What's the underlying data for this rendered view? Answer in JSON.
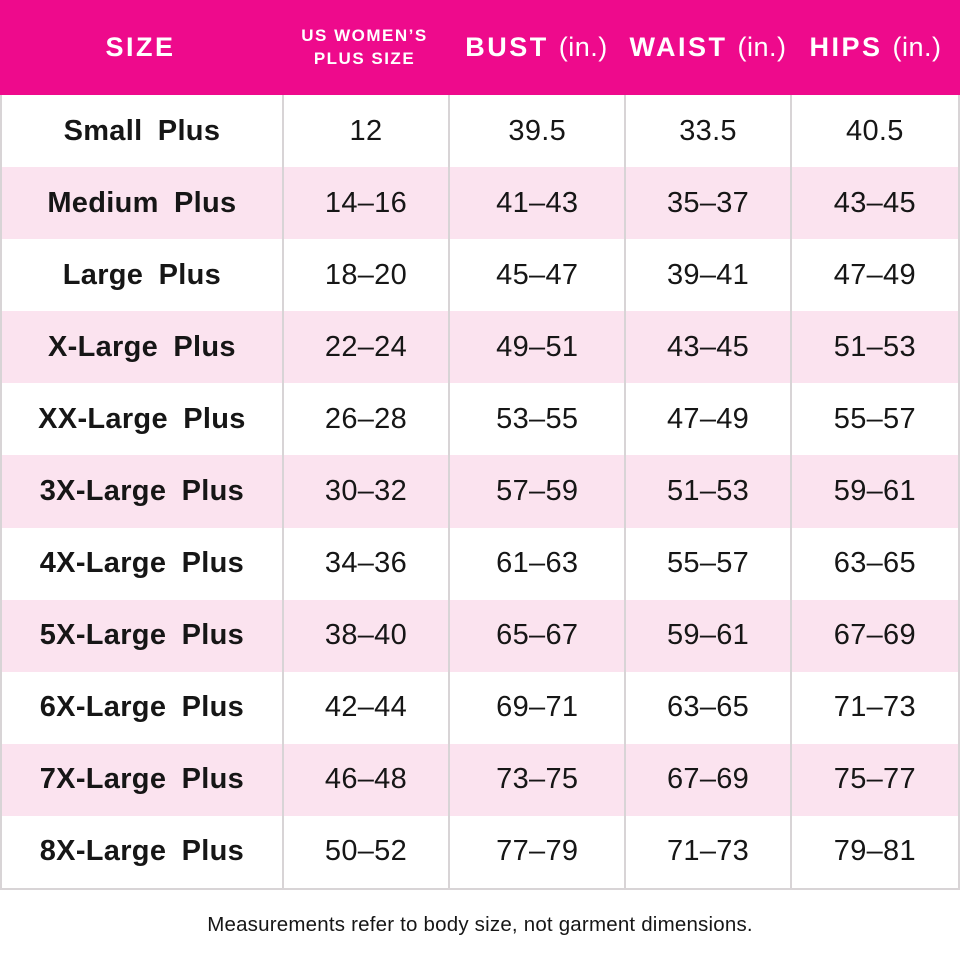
{
  "chart_data": {
    "type": "table",
    "columns": [
      "SIZE",
      "US WOMEN’S PLUS SIZE",
      "BUST (in.)",
      "WAIST (in.)",
      "HIPS (in.)"
    ],
    "rows": [
      {
        "size": "Small Plus",
        "us_plus_size": "12",
        "bust": "39.5",
        "waist": "33.5",
        "hips": "40.5"
      },
      {
        "size": "Medium Plus",
        "us_plus_size": "14–16",
        "bust": "41–43",
        "waist": "35–37",
        "hips": "43–45"
      },
      {
        "size": "Large Plus",
        "us_plus_size": "18–20",
        "bust": "45–47",
        "waist": "39–41",
        "hips": "47–49"
      },
      {
        "size": "X-Large Plus",
        "us_plus_size": "22–24",
        "bust": "49–51",
        "waist": "43–45",
        "hips": "51–53"
      },
      {
        "size": "XX-Large Plus",
        "us_plus_size": "26–28",
        "bust": "53–55",
        "waist": "47–49",
        "hips": "55–57"
      },
      {
        "size": "3X-Large Plus",
        "us_plus_size": "30–32",
        "bust": "57–59",
        "waist": "51–53",
        "hips": "59–61"
      },
      {
        "size": "4X-Large Plus",
        "us_plus_size": "34–36",
        "bust": "61–63",
        "waist": "55–57",
        "hips": "63–65"
      },
      {
        "size": "5X-Large Plus",
        "us_plus_size": "38–40",
        "bust": "65–67",
        "waist": "59–61",
        "hips": "67–69"
      },
      {
        "size": "6X-Large Plus",
        "us_plus_size": "42–44",
        "bust": "69–71",
        "waist": "63–65",
        "hips": "71–73"
      },
      {
        "size": "7X-Large Plus",
        "us_plus_size": "46–48",
        "bust": "73–75",
        "waist": "67–69",
        "hips": "75–77"
      },
      {
        "size": "8X-Large Plus",
        "us_plus_size": "50–52",
        "bust": "77–79",
        "waist": "71–73",
        "hips": "79–81"
      }
    ],
    "footnote": "Measurements refer to body size, not garment dimensions."
  },
  "header": {
    "size_label": "SIZE",
    "plus_size_line1": "US WOMEN’S",
    "plus_size_line2": "PLUS SIZE",
    "bust_label": "BUST",
    "waist_label": "WAIST",
    "hips_label": "HIPS",
    "unit_label": "(in.)"
  },
  "colors": {
    "header_bg": "#ee0a8c",
    "header_text": "#ffffff",
    "row_alt_bg": "#fbe3ef",
    "divider": "#d8d4d6",
    "text": "#161616"
  }
}
